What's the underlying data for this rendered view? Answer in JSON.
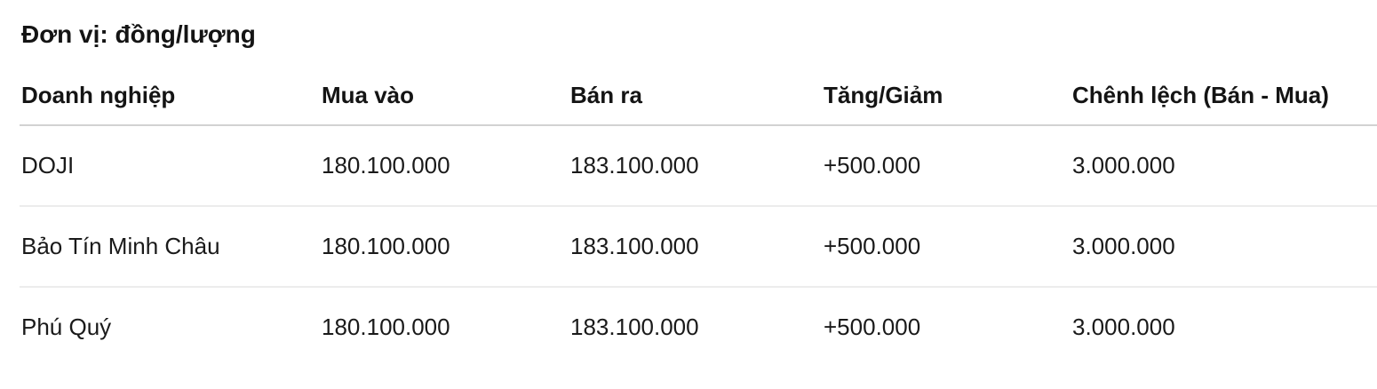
{
  "caption": "Đơn vị: đồng/lượng",
  "chart_data": {
    "type": "table",
    "title": "Đơn vị: đồng/lượng",
    "unit": "đồng/lượng",
    "columns": [
      "Doanh nghiệp",
      "Mua vào",
      "Bán ra",
      "Tăng/Giảm",
      "Chênh lệch (Bán - Mua)"
    ],
    "rows": [
      [
        "DOJI",
        "180.100.000",
        "183.100.000",
        "+500.000",
        "3.000.000"
      ],
      [
        "Bảo Tín Minh Châu",
        "180.100.000",
        "183.100.000",
        "+500.000",
        "3.000.000"
      ],
      [
        "Phú Quý",
        "180.100.000",
        "183.100.000",
        "+500.000",
        "3.000.000"
      ]
    ]
  },
  "colors": {
    "background": "#ffffff",
    "text": "#1a1a1a",
    "header_divider": "#d2d2d2",
    "row_divider": "#ececec"
  }
}
